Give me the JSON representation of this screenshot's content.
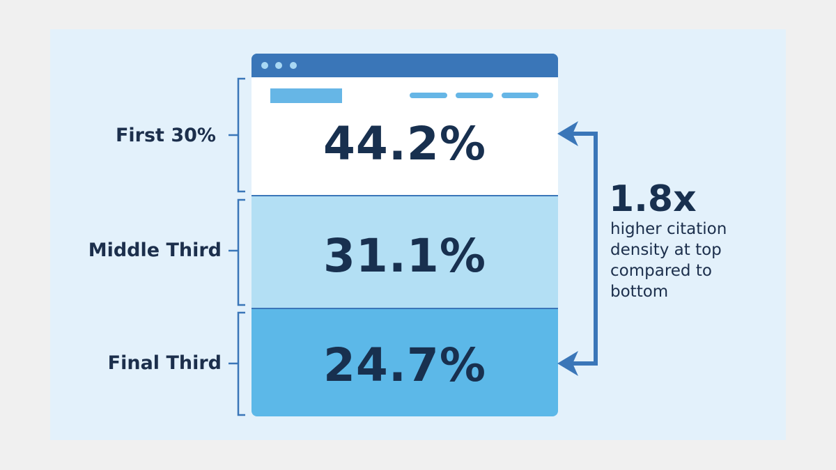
{
  "sections": [
    {
      "label": "First 30%",
      "value": "44.2%"
    },
    {
      "label": "Middle Third",
      "value": "31.1%"
    },
    {
      "label": "Final Third",
      "value": "24.7%"
    }
  ],
  "callout": {
    "ratio": "1.8x",
    "text": "higher citation density at top compared to bottom"
  }
}
